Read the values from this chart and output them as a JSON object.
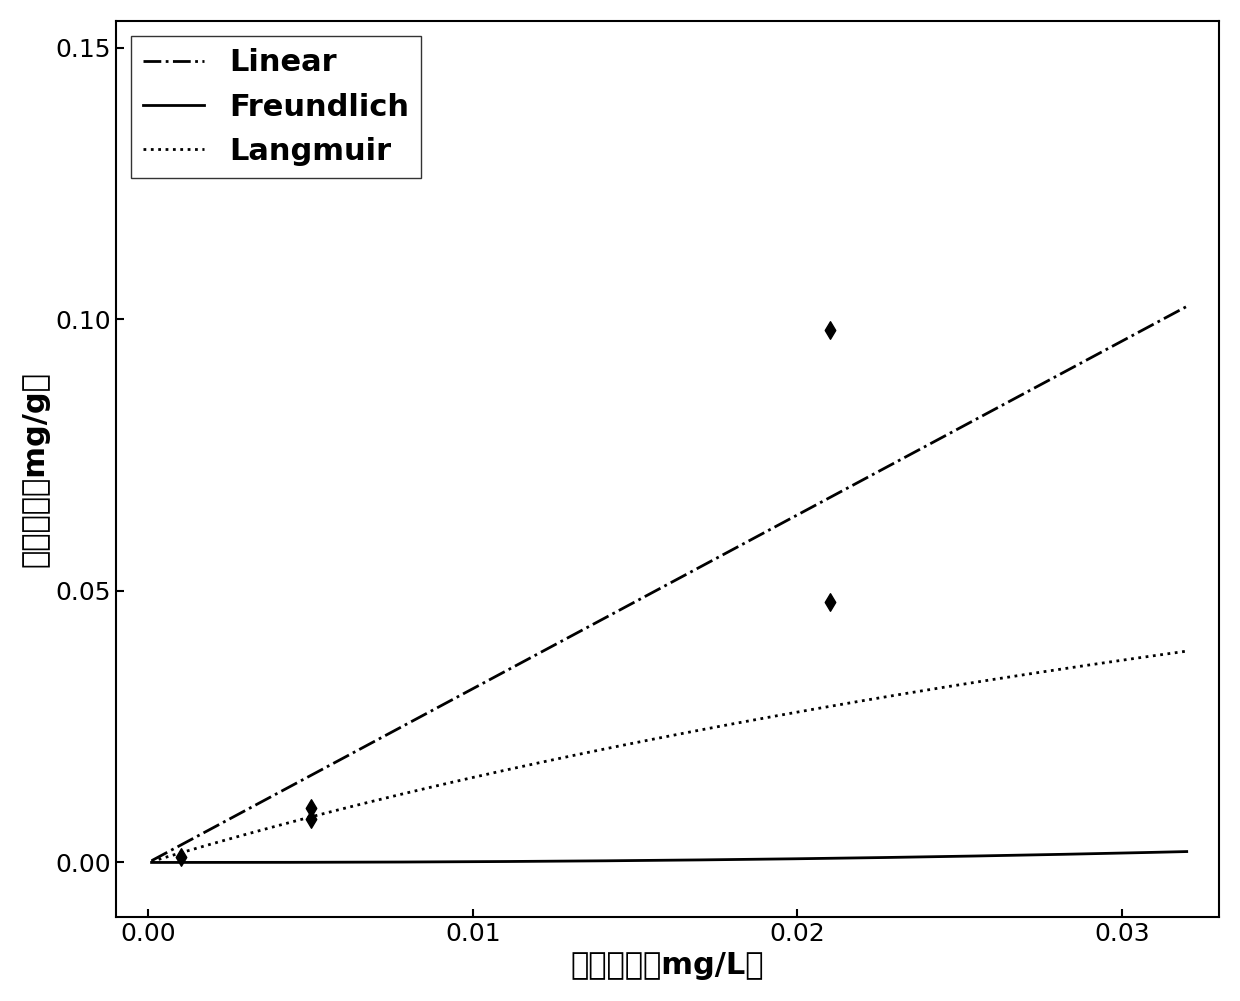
{
  "title": "",
  "xlabel": "平衡浓度（mg/L）",
  "ylabel": "吸附浓度（mg/g）",
  "xlim": [
    -0.001,
    0.033
  ],
  "ylim": [
    -0.01,
    0.155
  ],
  "xticks": [
    0.0,
    0.01,
    0.02,
    0.03
  ],
  "yticks": [
    0.0,
    0.05,
    0.1,
    0.15
  ],
  "scatter_x": [
    0.001,
    0.005,
    0.005,
    0.021,
    0.021
  ],
  "scatter_y": [
    0.001,
    0.008,
    0.01,
    0.048,
    0.098
  ],
  "linear_params": {
    "slope": 3.2,
    "intercept": 0.0
  },
  "freundlich_params": {
    "Kf": 5.5,
    "n": 2.3
  },
  "langmuir_params": {
    "qmax": 0.12,
    "KL": 15.0
  },
  "line_color": "#000000",
  "scatter_color": "#000000",
  "scatter_marker": "d",
  "scatter_size": 80,
  "legend_entries": [
    "Linear",
    "Freundlich",
    "Langmuir"
  ],
  "legend_linestyles": [
    "-.",
    "-",
    ":"
  ],
  "linewidth": 2.0,
  "font_size_ticks": 18,
  "font_size_labels": 22,
  "font_size_legend": 22,
  "background_color": "#ffffff"
}
